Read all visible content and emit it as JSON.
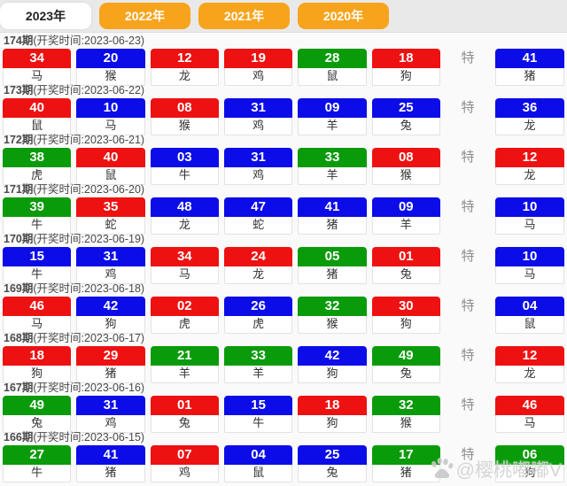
{
  "tabs": [
    {
      "label": "2023年",
      "active": true
    },
    {
      "label": "2022年",
      "active": false
    },
    {
      "label": "2021年",
      "active": false
    },
    {
      "label": "2020年",
      "active": false
    }
  ],
  "special_label": "特",
  "watermark": {
    "icon": "paw-icon",
    "text": "@樱桃嘟嘟V"
  },
  "colors": {
    "red": "#ee1111",
    "blue": "#0c0ce8",
    "green": "#0a9b0a",
    "tab_orange": "#f7a41c"
  },
  "draws": [
    {
      "period": "174期",
      "time_label": "(开奖时间:2023-06-23)",
      "numbers": [
        {
          "num": "34",
          "color": "red",
          "zodiac": "马"
        },
        {
          "num": "20",
          "color": "blue",
          "zodiac": "猴"
        },
        {
          "num": "12",
          "color": "red",
          "zodiac": "龙"
        },
        {
          "num": "19",
          "color": "red",
          "zodiac": "鸡"
        },
        {
          "num": "28",
          "color": "green",
          "zodiac": "鼠"
        },
        {
          "num": "18",
          "color": "red",
          "zodiac": "狗"
        }
      ],
      "special": {
        "num": "41",
        "color": "blue",
        "zodiac": "猪"
      }
    },
    {
      "period": "173期",
      "time_label": "(开奖时间:2023-06-22)",
      "numbers": [
        {
          "num": "40",
          "color": "red",
          "zodiac": "鼠"
        },
        {
          "num": "10",
          "color": "blue",
          "zodiac": "马"
        },
        {
          "num": "08",
          "color": "red",
          "zodiac": "猴"
        },
        {
          "num": "31",
          "color": "blue",
          "zodiac": "鸡"
        },
        {
          "num": "09",
          "color": "blue",
          "zodiac": "羊"
        },
        {
          "num": "25",
          "color": "blue",
          "zodiac": "兔"
        }
      ],
      "special": {
        "num": "36",
        "color": "blue",
        "zodiac": "龙"
      }
    },
    {
      "period": "172期",
      "time_label": "(开奖时间:2023-06-21)",
      "numbers": [
        {
          "num": "38",
          "color": "green",
          "zodiac": "虎"
        },
        {
          "num": "40",
          "color": "red",
          "zodiac": "鼠"
        },
        {
          "num": "03",
          "color": "blue",
          "zodiac": "牛"
        },
        {
          "num": "31",
          "color": "blue",
          "zodiac": "鸡"
        },
        {
          "num": "33",
          "color": "green",
          "zodiac": "羊"
        },
        {
          "num": "08",
          "color": "red",
          "zodiac": "猴"
        }
      ],
      "special": {
        "num": "12",
        "color": "red",
        "zodiac": "龙"
      }
    },
    {
      "period": "171期",
      "time_label": "(开奖时间:2023-06-20)",
      "numbers": [
        {
          "num": "39",
          "color": "green",
          "zodiac": "牛"
        },
        {
          "num": "35",
          "color": "red",
          "zodiac": "蛇"
        },
        {
          "num": "48",
          "color": "blue",
          "zodiac": "龙"
        },
        {
          "num": "47",
          "color": "blue",
          "zodiac": "蛇"
        },
        {
          "num": "41",
          "color": "blue",
          "zodiac": "猪"
        },
        {
          "num": "09",
          "color": "blue",
          "zodiac": "羊"
        }
      ],
      "special": {
        "num": "10",
        "color": "blue",
        "zodiac": "马"
      }
    },
    {
      "period": "170期",
      "time_label": "(开奖时间:2023-06-19)",
      "numbers": [
        {
          "num": "15",
          "color": "blue",
          "zodiac": "牛"
        },
        {
          "num": "31",
          "color": "blue",
          "zodiac": "鸡"
        },
        {
          "num": "34",
          "color": "red",
          "zodiac": "马"
        },
        {
          "num": "24",
          "color": "red",
          "zodiac": "龙"
        },
        {
          "num": "05",
          "color": "green",
          "zodiac": "猪"
        },
        {
          "num": "01",
          "color": "red",
          "zodiac": "兔"
        }
      ],
      "special": {
        "num": "10",
        "color": "blue",
        "zodiac": "马"
      }
    },
    {
      "period": "169期",
      "time_label": "(开奖时间:2023-06-18)",
      "numbers": [
        {
          "num": "46",
          "color": "red",
          "zodiac": "马"
        },
        {
          "num": "42",
          "color": "blue",
          "zodiac": "狗"
        },
        {
          "num": "02",
          "color": "red",
          "zodiac": "虎"
        },
        {
          "num": "26",
          "color": "blue",
          "zodiac": "虎"
        },
        {
          "num": "32",
          "color": "green",
          "zodiac": "猴"
        },
        {
          "num": "30",
          "color": "red",
          "zodiac": "狗"
        }
      ],
      "special": {
        "num": "04",
        "color": "blue",
        "zodiac": "鼠"
      }
    },
    {
      "period": "168期",
      "time_label": "(开奖时间:2023-06-17)",
      "numbers": [
        {
          "num": "18",
          "color": "red",
          "zodiac": "狗"
        },
        {
          "num": "29",
          "color": "red",
          "zodiac": "猪"
        },
        {
          "num": "21",
          "color": "green",
          "zodiac": "羊"
        },
        {
          "num": "33",
          "color": "green",
          "zodiac": "羊"
        },
        {
          "num": "42",
          "color": "blue",
          "zodiac": "狗"
        },
        {
          "num": "49",
          "color": "green",
          "zodiac": "兔"
        }
      ],
      "special": {
        "num": "12",
        "color": "red",
        "zodiac": "龙"
      }
    },
    {
      "period": "167期",
      "time_label": "(开奖时间:2023-06-16)",
      "numbers": [
        {
          "num": "49",
          "color": "green",
          "zodiac": "兔"
        },
        {
          "num": "31",
          "color": "blue",
          "zodiac": "鸡"
        },
        {
          "num": "01",
          "color": "red",
          "zodiac": "兔"
        },
        {
          "num": "15",
          "color": "blue",
          "zodiac": "牛"
        },
        {
          "num": "18",
          "color": "red",
          "zodiac": "狗"
        },
        {
          "num": "32",
          "color": "green",
          "zodiac": "猴"
        }
      ],
      "special": {
        "num": "46",
        "color": "red",
        "zodiac": "马"
      }
    },
    {
      "period": "166期",
      "time_label": "(开奖时间:2023-06-15)",
      "numbers": [
        {
          "num": "27",
          "color": "green",
          "zodiac": "牛"
        },
        {
          "num": "41",
          "color": "blue",
          "zodiac": "猪"
        },
        {
          "num": "07",
          "color": "red",
          "zodiac": "鸡"
        },
        {
          "num": "04",
          "color": "blue",
          "zodiac": "鼠"
        },
        {
          "num": "25",
          "color": "blue",
          "zodiac": "兔"
        },
        {
          "num": "17",
          "color": "green",
          "zodiac": "猪"
        }
      ],
      "special": {
        "num": "06",
        "color": "green",
        "zodiac": "狗"
      }
    }
  ]
}
